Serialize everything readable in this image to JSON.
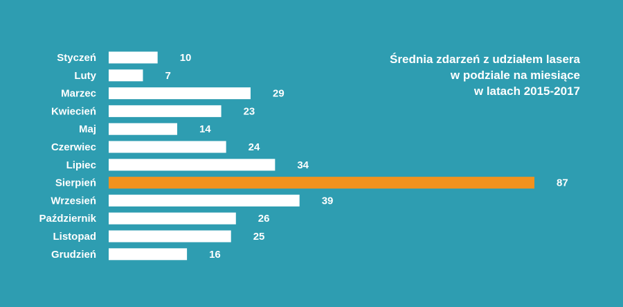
{
  "chart_data": {
    "type": "bar",
    "orientation": "horizontal",
    "title": "Średnia zdarzeń z udziałem lasera w podziale na miesiące w latach 2015-2017",
    "title_lines": [
      "Średnia zdarzeń z udziałem lasera",
      "w podziale na miesiące",
      "w latach 2015-2017"
    ],
    "categories": [
      "Styczeń",
      "Luty",
      "Marzec",
      "Kwiecień",
      "Maj",
      "Czerwiec",
      "Lipiec",
      "Sierpień",
      "Wrzesień",
      "Październik",
      "Listopad",
      "Grudzień"
    ],
    "values": [
      10,
      7,
      29,
      23,
      14,
      24,
      34,
      87,
      39,
      26,
      25,
      16
    ],
    "highlight_index": 7,
    "xlim": [
      0,
      87
    ],
    "xlabel": "",
    "ylabel": "",
    "grid": false,
    "legend": "none"
  },
  "colors": {
    "background": "#2e9db1",
    "bar": "#ffffff",
    "highlight": "#f2921e",
    "text": "#ffffff"
  }
}
